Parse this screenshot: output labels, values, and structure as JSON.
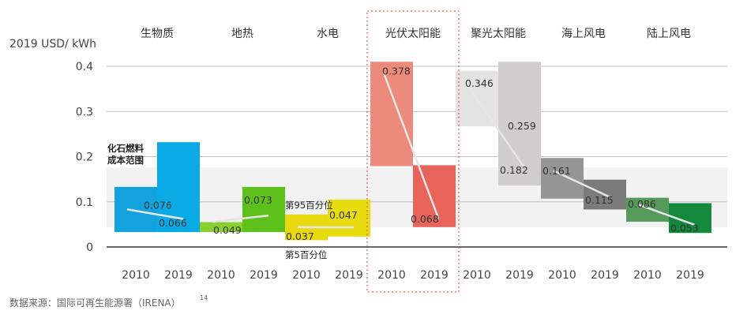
{
  "chart_data": {
    "type": "bar",
    "ylabel": "2019 USD/ kWh",
    "ylim": [
      0,
      0.42
    ],
    "yticks": [
      0,
      0.1,
      0.2,
      0.3,
      0.4
    ],
    "ytick_labels": [
      "0",
      "0.1",
      "0.2",
      "0.3",
      "0.4"
    ],
    "grid": false,
    "fossil_band": {
      "label": "化石燃料成本范围",
      "label_lines": [
        "化石燃料",
        "成本范围"
      ],
      "low": 0.044,
      "high": 0.176,
      "color": "#f2f2f2"
    },
    "percentile_labels": {
      "p95": "第95百分位",
      "p5": "第5百分位"
    },
    "highlight": {
      "technology": "光伏太阳能",
      "style": "dotted-red-box"
    },
    "source_text": "数据来源：国际可再生能源署（IRENA）",
    "source_superscript": "14",
    "technologies": [
      {
        "name": "生物质",
        "bars": [
          {
            "year": "2010",
            "value": 0.076,
            "value_label": "0.076",
            "low": 0.033,
            "high": 0.133,
            "color": "#12a3df"
          },
          {
            "year": "2019",
            "value": 0.066,
            "value_label": "0.066",
            "low": 0.033,
            "high": 0.232,
            "color": "#0aaae6"
          }
        ]
      },
      {
        "name": "地热",
        "bars": [
          {
            "year": "2010",
            "value": 0.049,
            "value_label": "0.049",
            "low": 0.033,
            "high": 0.055,
            "color": "#8ad12f"
          },
          {
            "year": "2019",
            "value": 0.073,
            "value_label": "0.073",
            "low": 0.033,
            "high": 0.133,
            "color": "#5ec11b"
          }
        ]
      },
      {
        "name": "水电",
        "bars": [
          {
            "year": "2010",
            "value": 0.037,
            "value_label": "0.037",
            "low": 0.015,
            "high": 0.072,
            "color": "#e8d90f"
          },
          {
            "year": "2019",
            "value": 0.047,
            "value_label": "0.047",
            "low": 0.023,
            "high": 0.105,
            "color": "#e8db10"
          }
        ]
      },
      {
        "name": "光伏太阳能",
        "bars": [
          {
            "year": "2010",
            "value": 0.378,
            "value_label": "0.378",
            "low": 0.179,
            "high": 0.41,
            "color": "#ec8a7c"
          },
          {
            "year": "2019",
            "value": 0.068,
            "value_label": "0.068",
            "low": 0.044,
            "high": 0.181,
            "color": "#e8645a"
          }
        ]
      },
      {
        "name": "聚光太阳能",
        "bars": [
          {
            "year": "2010",
            "value": 0.346,
            "value_label": "0.346",
            "low": 0.267,
            "high": 0.39,
            "color": "#e3e3e3"
          },
          {
            "year": "2019",
            "value": 0.182,
            "value_label": "0.182",
            "low": 0.136,
            "high": 0.41,
            "color": "#cfcdcd"
          }
        ],
        "extra_label": "0.259"
      },
      {
        "name": "海上风电",
        "bars": [
          {
            "year": "2010",
            "value": 0.161,
            "value_label": "0.161",
            "low": 0.107,
            "high": 0.197,
            "color": "#959595"
          },
          {
            "year": "2019",
            "value": 0.115,
            "value_label": "0.115",
            "low": 0.083,
            "high": 0.149,
            "color": "#7b7b7b"
          }
        ]
      },
      {
        "name": "陆上风电",
        "bars": [
          {
            "year": "2010",
            "value": 0.086,
            "value_label": "0.086",
            "low": 0.056,
            "high": 0.109,
            "color": "#569a5b"
          },
          {
            "year": "2019",
            "value": 0.053,
            "value_label": "0.053",
            "low": 0.031,
            "high": 0.097,
            "color": "#14893c"
          }
        ]
      }
    ]
  }
}
